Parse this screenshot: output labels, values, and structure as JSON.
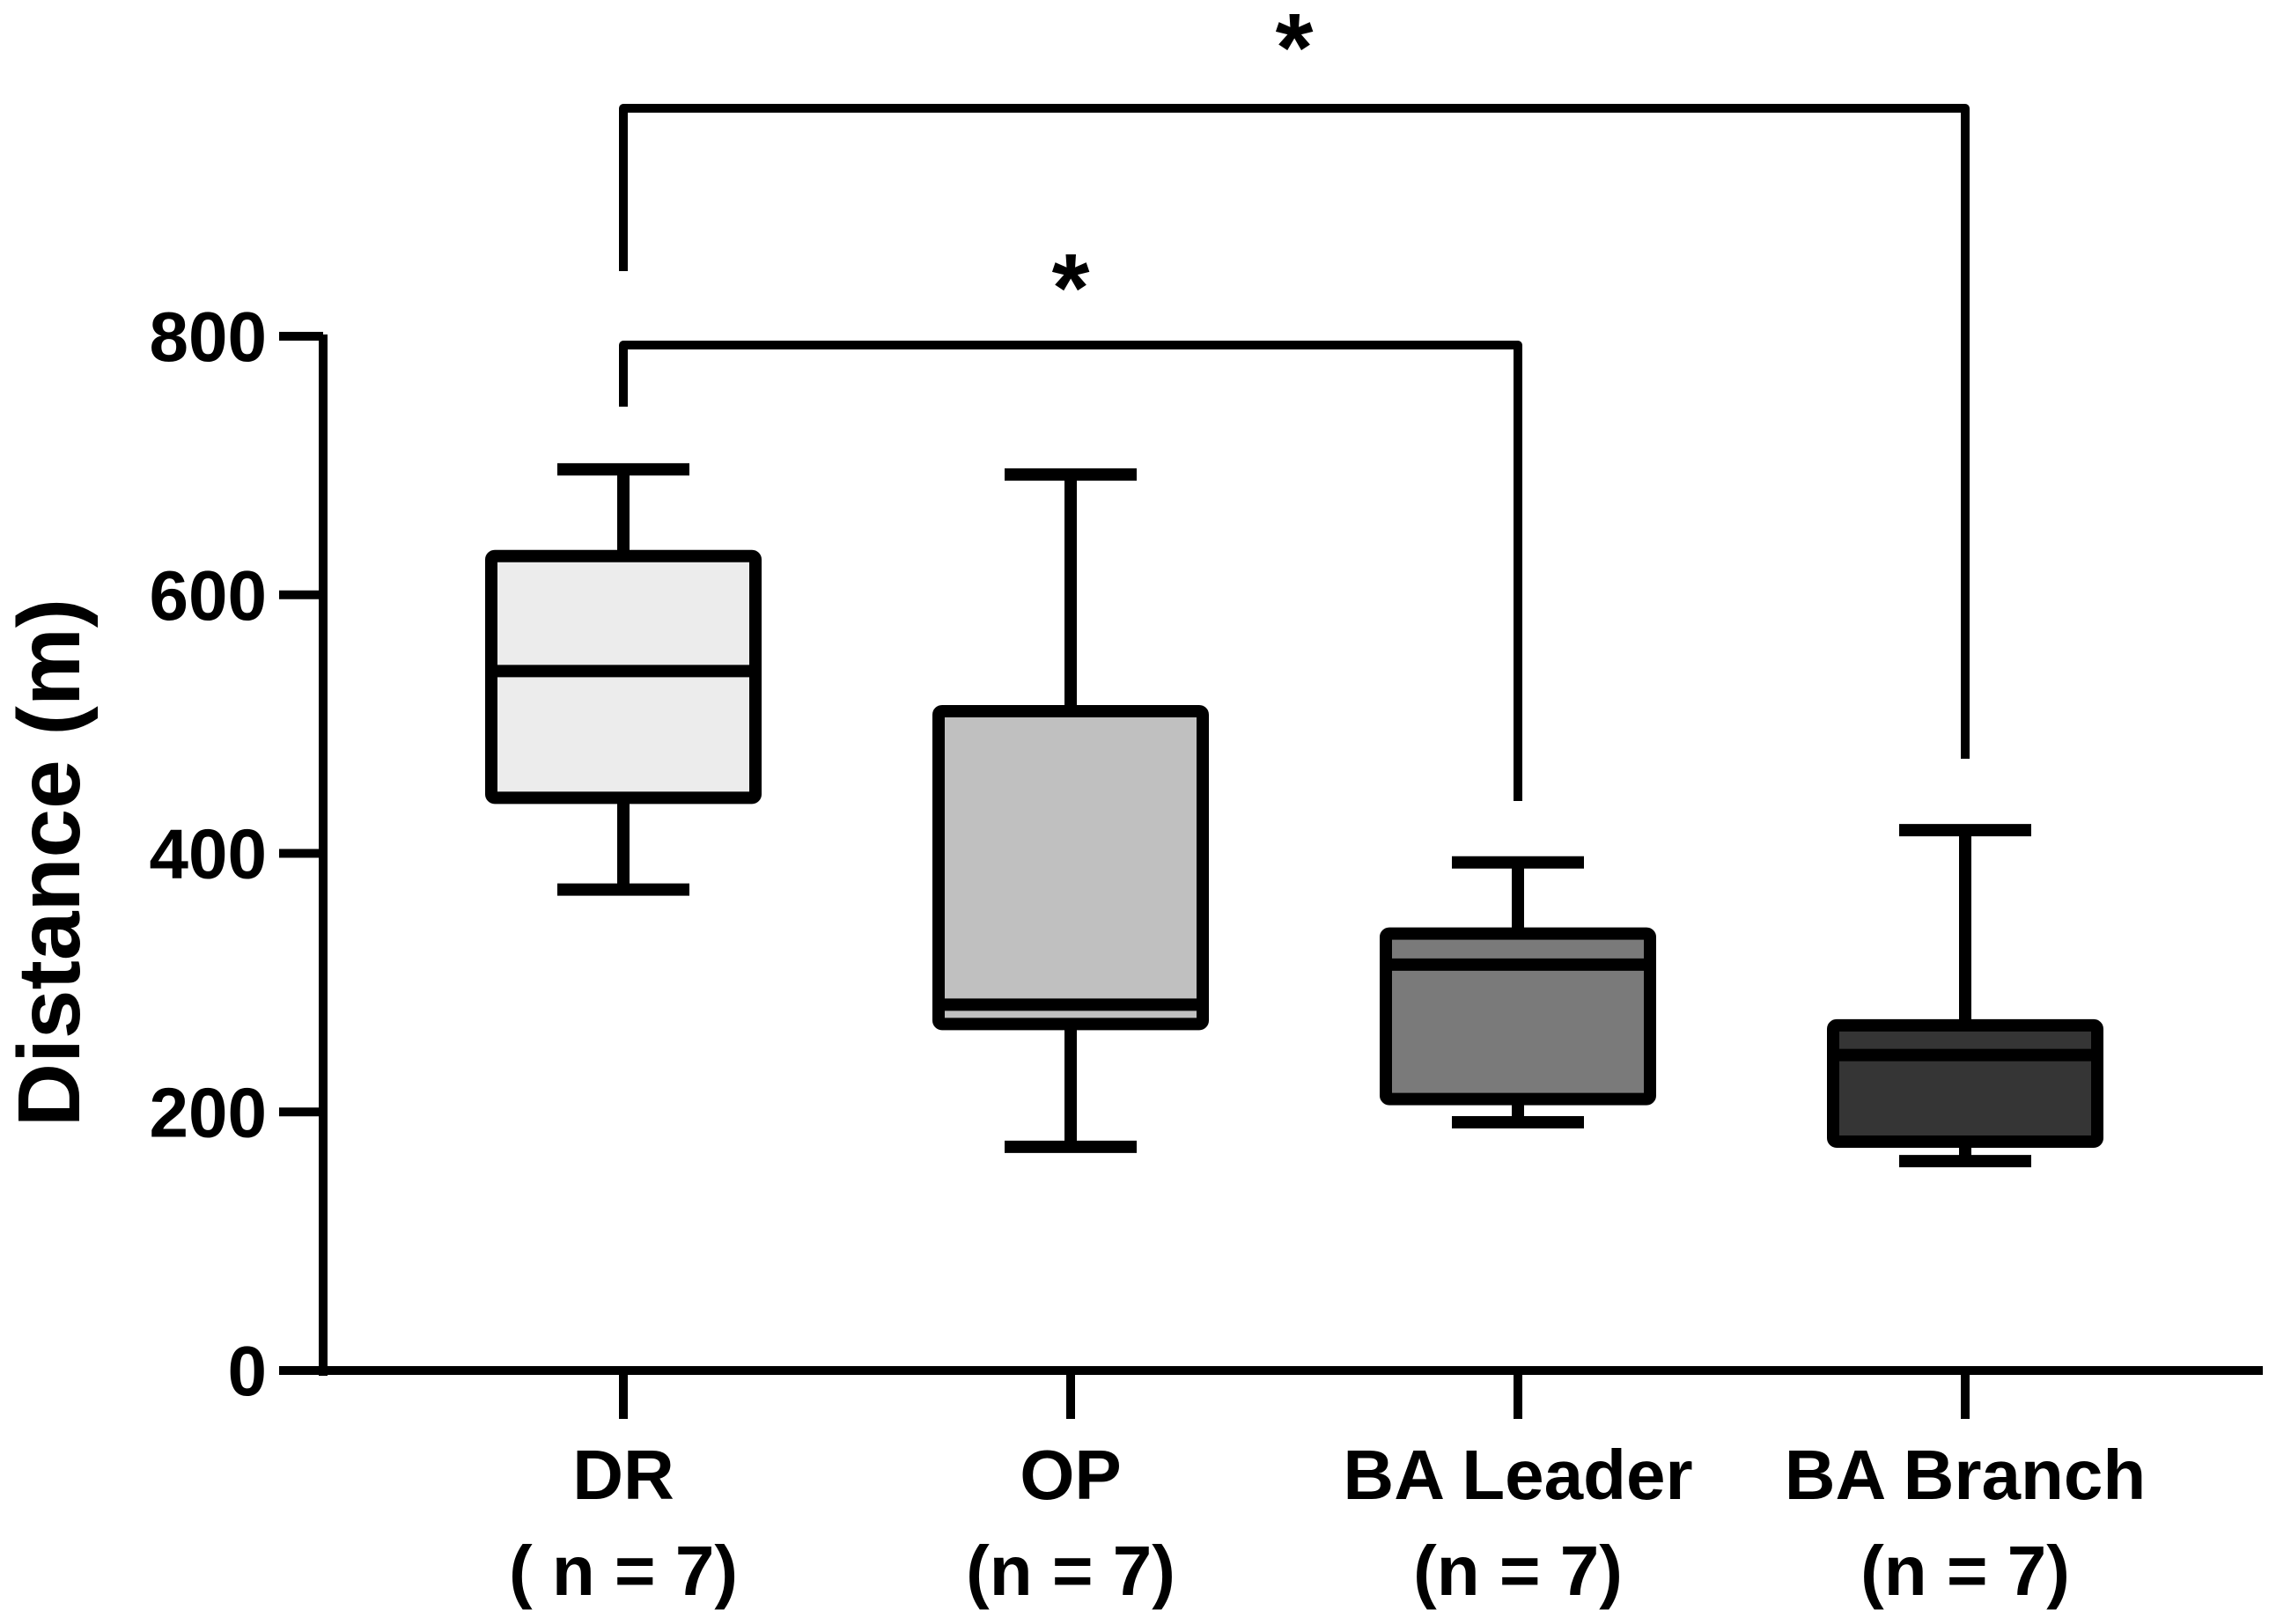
{
  "chart_data": {
    "type": "box",
    "ylabel": "Distance (m)",
    "ylim": [
      0,
      800
    ],
    "yticks": [
      0,
      200,
      400,
      600,
      800
    ],
    "categories": [
      {
        "name": "DR",
        "n_label": "( n = 7)"
      },
      {
        "name": "OP",
        "n_label": "(n = 7)"
      },
      {
        "name": "BA Leader",
        "n_label": "(n = 7)"
      },
      {
        "name": "BA Branch",
        "n_label": "(n = 7)"
      }
    ],
    "boxes": [
      {
        "category": "DR",
        "min": 372,
        "q1": 443,
        "median": 541,
        "q3": 630,
        "max": 697,
        "fill": "#ececec"
      },
      {
        "category": "OP",
        "min": 173,
        "q1": 268,
        "median": 283,
        "q3": 510,
        "max": 693,
        "fill": "#c0c0c0"
      },
      {
        "category": "BA Leader",
        "min": 192,
        "q1": 210,
        "median": 314,
        "q3": 338,
        "max": 393,
        "fill": "#7a7a7a"
      },
      {
        "category": "BA Branch",
        "min": 162,
        "q1": 177,
        "median": 244,
        "q3": 267,
        "max": 418,
        "fill": "#353535"
      }
    ],
    "significance": [
      {
        "from": "DR",
        "to": "BA Leader",
        "label": "*"
      },
      {
        "from": "DR",
        "to": "BA Branch",
        "label": "*"
      }
    ],
    "colors": {
      "axis": "#000000",
      "outline": "#000000"
    }
  }
}
